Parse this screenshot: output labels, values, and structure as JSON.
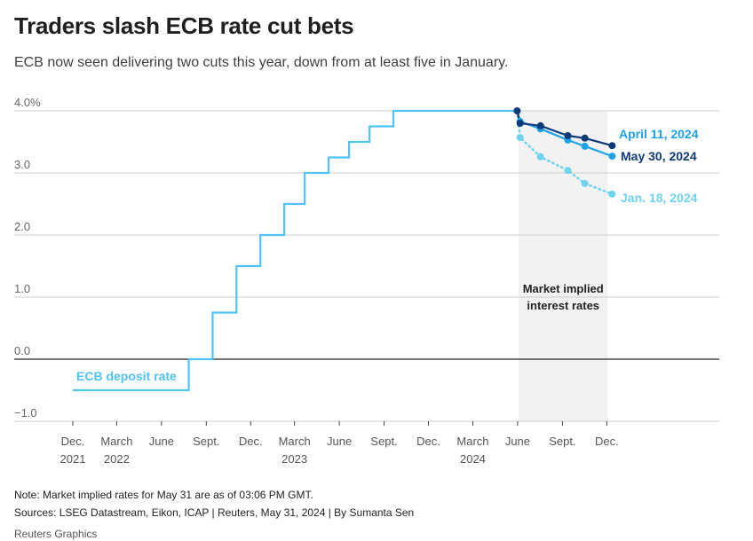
{
  "header": {
    "title": "Traders slash ECB rate cut bets",
    "subtitle": "ECB now seen delivering two cuts this year, down from at least five in January."
  },
  "chart_data": {
    "type": "line",
    "title": "Traders slash ECB rate cut bets",
    "subtitle": "ECB now seen delivering two cuts this year, down from at least five in January.",
    "xlabel": "",
    "ylabel": "",
    "ylim": [
      -1.0,
      4.0
    ],
    "xlim": [
      "2021-10-01",
      "2025-03-31"
    ],
    "grid": true,
    "yticks": [
      {
        "value": 4.0,
        "label": "4.0%"
      },
      {
        "value": 3.0,
        "label": "3.0"
      },
      {
        "value": 2.0,
        "label": "2.0"
      },
      {
        "value": 1.0,
        "label": "1.0"
      },
      {
        "value": 0.0,
        "label": "0.0"
      },
      {
        "value": -1.0,
        "label": "−1.0"
      }
    ],
    "xticks": [
      {
        "date": "2021-12-01",
        "line1": "Dec.",
        "line2": "2021"
      },
      {
        "date": "2022-03-01",
        "line1": "March",
        "line2": "2022"
      },
      {
        "date": "2022-06-01",
        "line1": "June",
        "line2": ""
      },
      {
        "date": "2022-09-01",
        "line1": "Sept.",
        "line2": ""
      },
      {
        "date": "2022-12-01",
        "line1": "Dec.",
        "line2": ""
      },
      {
        "date": "2023-03-01",
        "line1": "March",
        "line2": "2023"
      },
      {
        "date": "2023-06-01",
        "line1": "June",
        "line2": ""
      },
      {
        "date": "2023-09-01",
        "line1": "Sept.",
        "line2": ""
      },
      {
        "date": "2023-12-01",
        "line1": "Dec.",
        "line2": ""
      },
      {
        "date": "2024-03-01",
        "line1": "March",
        "line2": "2024"
      },
      {
        "date": "2024-06-01",
        "line1": "June",
        "line2": ""
      },
      {
        "date": "2024-09-01",
        "line1": "Sept.",
        "line2": ""
      },
      {
        "date": "2024-12-01",
        "line1": "Dec.",
        "line2": ""
      }
    ],
    "shaded_region": {
      "start": "2024-06-03",
      "end": "2024-12-03",
      "label_line1": "Market implied",
      "label_line2": "interest rates"
    },
    "series": [
      {
        "name": "ECB deposit rate",
        "style": "step",
        "color": "#4fc3f7",
        "points": [
          {
            "date": "2021-12-01",
            "value": -0.5
          },
          {
            "date": "2022-07-27",
            "value": 0.0
          },
          {
            "date": "2022-09-14",
            "value": 0.75
          },
          {
            "date": "2022-11-02",
            "value": 1.5
          },
          {
            "date": "2022-12-21",
            "value": 2.0
          },
          {
            "date": "2023-02-08",
            "value": 2.5
          },
          {
            "date": "2023-03-22",
            "value": 3.0
          },
          {
            "date": "2023-05-10",
            "value": 3.25
          },
          {
            "date": "2023-06-21",
            "value": 3.5
          },
          {
            "date": "2023-08-02",
            "value": 3.75
          },
          {
            "date": "2023-09-20",
            "value": 4.0
          },
          {
            "date": "2024-05-31",
            "value": 4.0
          }
        ]
      },
      {
        "name": "Jan. 18, 2024",
        "style": "dotted",
        "color": "#6fd3f0",
        "points": [
          {
            "date": "2024-05-31",
            "value": 4.0
          },
          {
            "date": "2024-06-06",
            "value": 3.57
          },
          {
            "date": "2024-07-18",
            "value": 3.26
          },
          {
            "date": "2024-09-12",
            "value": 3.04
          },
          {
            "date": "2024-10-17",
            "value": 2.83
          },
          {
            "date": "2024-12-12",
            "value": 2.66
          }
        ]
      },
      {
        "name": "April 11, 2024",
        "style": "solid",
        "color": "#1ea1e6",
        "points": [
          {
            "date": "2024-05-31",
            "value": 4.0
          },
          {
            "date": "2024-06-06",
            "value": 3.83
          },
          {
            "date": "2024-07-18",
            "value": 3.71
          },
          {
            "date": "2024-09-12",
            "value": 3.53
          },
          {
            "date": "2024-10-17",
            "value": 3.43
          },
          {
            "date": "2024-12-12",
            "value": 3.27
          }
        ]
      },
      {
        "name": "May 30, 2024",
        "style": "solid",
        "color": "#0d3b7a",
        "points": [
          {
            "date": "2024-05-31",
            "value": 4.0
          },
          {
            "date": "2024-06-06",
            "value": 3.8
          },
          {
            "date": "2024-07-18",
            "value": 3.76
          },
          {
            "date": "2024-09-12",
            "value": 3.6
          },
          {
            "date": "2024-10-17",
            "value": 3.56
          },
          {
            "date": "2024-12-12",
            "value": 3.44
          }
        ]
      }
    ],
    "annotations": [
      {
        "text": "ECB deposit rate",
        "series": "ECB deposit rate",
        "color": "#4fc3f7"
      },
      {
        "text": "April 11, 2024",
        "series": "April 11, 2024",
        "color": "#1ea1e6"
      },
      {
        "text": "May 30, 2024",
        "series": "May 30, 2024",
        "color": "#0d3b7a"
      },
      {
        "text": "Jan. 18, 2024",
        "series": "Jan. 18, 2024",
        "color": "#6fd3f0"
      }
    ]
  },
  "footer": {
    "note": "Note: Market implied rates for May 31 are as of 03:06 PM GMT.",
    "sources": "Sources: LSEG Datastream, Eikon, ICAP | Reuters, May 31, 2024 | By Sumanta Sen",
    "brand": "Reuters Graphics"
  }
}
